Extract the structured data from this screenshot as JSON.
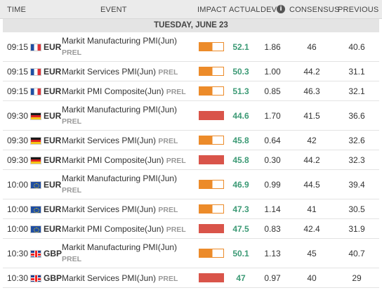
{
  "header": {
    "time": "TIME",
    "event": "EVENT",
    "impact": "IMPACT",
    "actual": "ACTUAL",
    "dev": "DEV",
    "info": "i",
    "consensus": "CONSENSUS",
    "previous": "PREVIOUS"
  },
  "day": "TUESDAY, JUNE 23",
  "impact_colors": {
    "medium": "#ec8b2a",
    "high": "#d9544a"
  },
  "actual_color": "#3c9a75",
  "events": [
    {
      "time": "09:15",
      "flag": "france-flag-icon",
      "currency": "EUR",
      "event": "Markit Manufacturing PMI(Jun)",
      "tag": "PREL",
      "impact": "medium",
      "actual": "52.1",
      "dev": "1.86",
      "consensus": "46",
      "previous": "40.6",
      "layout": "two-line"
    },
    {
      "time": "09:15",
      "flag": "france-flag-icon",
      "currency": "EUR",
      "event": "Markit Services PMI(Jun)",
      "tag": "PREL",
      "impact": "medium",
      "actual": "50.3",
      "dev": "1.00",
      "consensus": "44.2",
      "previous": "31.1",
      "layout": "one-line"
    },
    {
      "time": "09:15",
      "flag": "france-flag-icon",
      "currency": "EUR",
      "event": "Markit PMI Composite(Jun)",
      "tag": "PREL",
      "impact": "medium",
      "actual": "51.3",
      "dev": "0.85",
      "consensus": "46.3",
      "previous": "32.1",
      "layout": "one-line"
    },
    {
      "time": "09:30",
      "flag": "germany-flag-icon",
      "currency": "EUR",
      "event": "Markit Manufacturing PMI(Jun)",
      "tag": "PREL",
      "impact": "high",
      "actual": "44.6",
      "dev": "1.70",
      "consensus": "41.5",
      "previous": "36.6",
      "layout": "two-line"
    },
    {
      "time": "09:30",
      "flag": "germany-flag-icon",
      "currency": "EUR",
      "event": "Markit Services PMI(Jun)",
      "tag": "PREL",
      "impact": "medium",
      "actual": "45.8",
      "dev": "0.64",
      "consensus": "42",
      "previous": "32.6",
      "layout": "one-line"
    },
    {
      "time": "09:30",
      "flag": "germany-flag-icon",
      "currency": "EUR",
      "event": "Markit PMI Composite(Jun)",
      "tag": "PREL",
      "impact": "high",
      "actual": "45.8",
      "dev": "0.30",
      "consensus": "44.2",
      "previous": "32.3",
      "layout": "one-line"
    },
    {
      "time": "10:00",
      "flag": "eu-flag-icon",
      "currency": "EUR",
      "event": "Markit Manufacturing PMI(Jun)",
      "tag": "PREL",
      "impact": "medium",
      "actual": "46.9",
      "dev": "0.99",
      "consensus": "44.5",
      "previous": "39.4",
      "layout": "two-line"
    },
    {
      "time": "10:00",
      "flag": "eu-flag-icon",
      "currency": "EUR",
      "event": "Markit Services PMI(Jun)",
      "tag": "PREL",
      "impact": "medium",
      "actual": "47.3",
      "dev": "1.14",
      "consensus": "41",
      "previous": "30.5",
      "layout": "one-line"
    },
    {
      "time": "10:00",
      "flag": "eu-flag-icon",
      "currency": "EUR",
      "event": "Markit PMI Composite(Jun)",
      "tag": "PREL",
      "impact": "high",
      "actual": "47.5",
      "dev": "0.83",
      "consensus": "42.4",
      "previous": "31.9",
      "layout": "one-line"
    },
    {
      "time": "10:30",
      "flag": "uk-flag-icon",
      "currency": "GBP",
      "event": "Markit Manufacturing PMI(Jun)",
      "tag": "PREL",
      "impact": "medium",
      "actual": "50.1",
      "dev": "1.13",
      "consensus": "45",
      "previous": "40.7",
      "layout": "two-line"
    },
    {
      "time": "10:30",
      "flag": "uk-flag-icon",
      "currency": "GBP",
      "event": "Markit Services PMI(Jun)",
      "tag": "PREL",
      "impact": "high",
      "actual": "47",
      "dev": "0.97",
      "consensus": "40",
      "previous": "29",
      "layout": "one-line"
    }
  ]
}
